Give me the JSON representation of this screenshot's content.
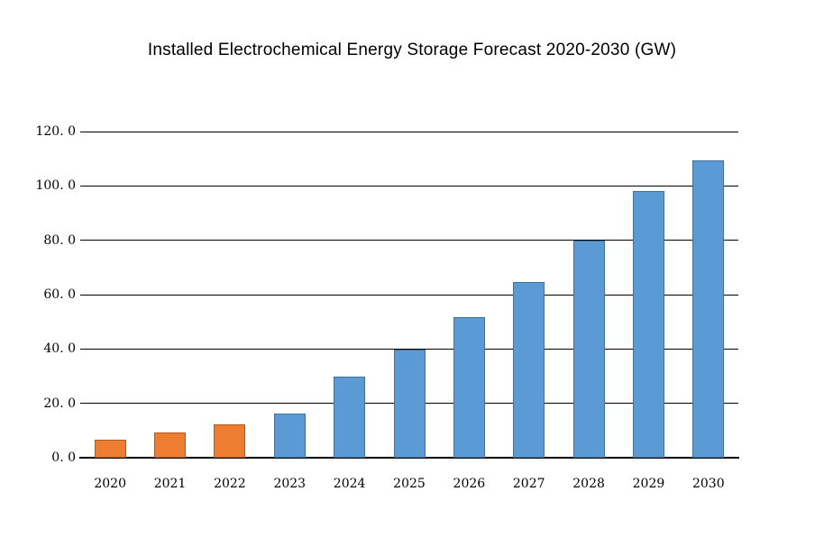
{
  "title": "Installed Electrochemical Energy Storage Forecast 2020-2030 (GW)",
  "chart_data": {
    "type": "bar",
    "title": "Installed Electrochemical Energy Storage Forecast 2020-2030 (GW)",
    "unit": "GW",
    "categories": [
      "2020",
      "2021",
      "2022",
      "2023",
      "2024",
      "2025",
      "2026",
      "2027",
      "2028",
      "2029",
      "2030"
    ],
    "values": [
      6.5,
      9.3,
      12.3,
      16.1,
      29.8,
      39.9,
      51.7,
      64.5,
      79.8,
      98.0,
      109.5
    ],
    "bar_groups": [
      "historical",
      "historical",
      "historical",
      "forecast",
      "forecast",
      "forecast",
      "forecast",
      "forecast",
      "forecast",
      "forecast",
      "forecast"
    ],
    "colors": {
      "historical_fill": "#ED7D31",
      "historical_border": "#AE5A21",
      "forecast_fill": "#5B9BD5",
      "forecast_border": "#41719C",
      "gridline": "#000000",
      "axis_line": "#000000",
      "text": "#000000",
      "background": "#FFFFFF"
    },
    "xlabel": "",
    "ylabel": "",
    "ylim": [
      0,
      120
    ],
    "ytick_interval": 20,
    "ytick_labels": [
      "0. 0",
      "20. 0",
      "40. 0",
      "60. 0",
      "80. 0",
      "100. 0",
      "120. 0"
    ],
    "grid": "horizontal",
    "legend": "none"
  }
}
